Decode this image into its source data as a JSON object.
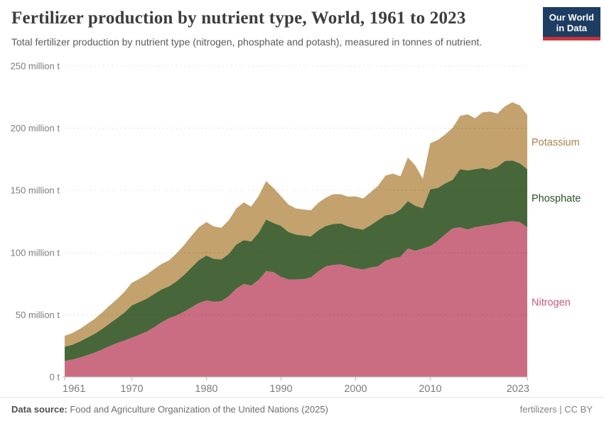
{
  "header": {
    "title": "Fertilizer production by nutrient type, World, 1961 to 2023",
    "subtitle": "Total fertilizer production by nutrient type (nitrogen, phosphate and potash), measured in tonnes of nutrient.",
    "logo": {
      "line1": "Our World",
      "line2": "in Data",
      "bg_color": "#1d3d63",
      "stripe_color": "#cb333b"
    }
  },
  "chart_data": {
    "type": "area",
    "stacked": true,
    "title": "Fertilizer production by nutrient type",
    "xlabel": "",
    "ylabel": "tonnes of nutrient",
    "ylim": [
      0,
      250
    ],
    "grid": "dashed-horizontal",
    "legend_position": "right-of-plot",
    "years": [
      1961,
      1962,
      1963,
      1964,
      1965,
      1966,
      1967,
      1968,
      1969,
      1970,
      1971,
      1972,
      1973,
      1974,
      1975,
      1976,
      1977,
      1978,
      1979,
      1980,
      1981,
      1982,
      1983,
      1984,
      1985,
      1986,
      1987,
      1988,
      1989,
      1990,
      1991,
      1992,
      1993,
      1994,
      1995,
      1996,
      1997,
      1998,
      1999,
      2000,
      2001,
      2002,
      2003,
      2004,
      2005,
      2006,
      2007,
      2008,
      2009,
      2010,
      2011,
      2012,
      2013,
      2014,
      2015,
      2016,
      2017,
      2018,
      2019,
      2020,
      2021,
      2022,
      2023
    ],
    "unit": "million t",
    "series": [
      {
        "name": "Nitrogen",
        "color": "#ca6d82",
        "label_color": "#c9567b",
        "values": [
          13,
          14,
          15.6,
          17.5,
          19.5,
          22,
          24.8,
          27.2,
          29.3,
          31.6,
          34,
          36.5,
          40,
          44,
          47.2,
          49.5,
          52.5,
          56,
          59.5,
          61.5,
          60.5,
          61,
          65,
          71,
          74.8,
          73.5,
          78,
          85.2,
          84.3,
          80.5,
          78.5,
          78.5,
          78.6,
          80,
          85,
          89,
          90,
          90.5,
          89,
          87.4,
          86.5,
          88,
          89,
          93.5,
          95.5,
          96.6,
          103.3,
          101.4,
          103.3,
          105.2,
          109.5,
          114.7,
          119.5,
          120.4,
          118.6,
          120.4,
          121.4,
          122.3,
          123.3,
          124.6,
          125.2,
          124.6,
          120.4
        ]
      },
      {
        "name": "Phosphate",
        "color": "#47673a",
        "label_color": "#2c5128",
        "values": [
          11.3,
          11.9,
          12.9,
          14,
          15.2,
          16.5,
          18.2,
          20,
          22.5,
          26,
          26.3,
          26.5,
          26.8,
          26.5,
          25.7,
          27.5,
          29.5,
          32,
          34.5,
          36.1,
          34.5,
          33.5,
          34,
          35.5,
          35.2,
          35.5,
          38,
          41.4,
          39.5,
          41,
          38,
          36,
          35.2,
          33,
          33,
          32.4,
          33,
          33,
          32,
          32.1,
          32,
          34,
          37.1,
          36.5,
          35.5,
          38.1,
          38.1,
          36.2,
          32.4,
          45.7,
          42.5,
          41,
          39,
          46.7,
          47.5,
          46.7,
          46.6,
          44.5,
          45.7,
          49.1,
          48.9,
          47.2,
          46.7
        ]
      },
      {
        "name": "Potassium",
        "color": "#c3a26d",
        "label_color": "#a8834a",
        "values": [
          8.8,
          9.3,
          10,
          11,
          12,
          13.2,
          14.3,
          15.3,
          16.6,
          18.1,
          18.6,
          19.3,
          20,
          20.5,
          20.9,
          22.5,
          24,
          25.5,
          26.5,
          27,
          26,
          25.5,
          27,
          29,
          30.4,
          28,
          29.5,
          30.9,
          28,
          23.8,
          22,
          21,
          20.9,
          21,
          22,
          22.8,
          24,
          23.5,
          24,
          25.7,
          25,
          26.5,
          27.6,
          32,
          32.5,
          26.7,
          35.1,
          32.3,
          23.7,
          37.1,
          38.5,
          39.3,
          41.8,
          42.8,
          45.1,
          40.9,
          44.8,
          46.5,
          42.8,
          43.8,
          46.8,
          46.6,
          43.7
        ]
      }
    ],
    "yticks": [
      {
        "value": 0,
        "label": "0 t"
      },
      {
        "value": 50,
        "label": "50 million t"
      },
      {
        "value": 100,
        "label": "100 million t"
      },
      {
        "value": 150,
        "label": "150 million t"
      },
      {
        "value": 200,
        "label": "200 million t"
      },
      {
        "value": 250,
        "label": "250 million t"
      }
    ],
    "xticks": [
      1961,
      1970,
      1980,
      1990,
      2000,
      2010,
      2023
    ]
  },
  "footer": {
    "source_label": "Data source:",
    "source_text": " Food and Agriculture Organization of the United Nations (2025)",
    "right_text": "fertilizers | CC BY"
  }
}
